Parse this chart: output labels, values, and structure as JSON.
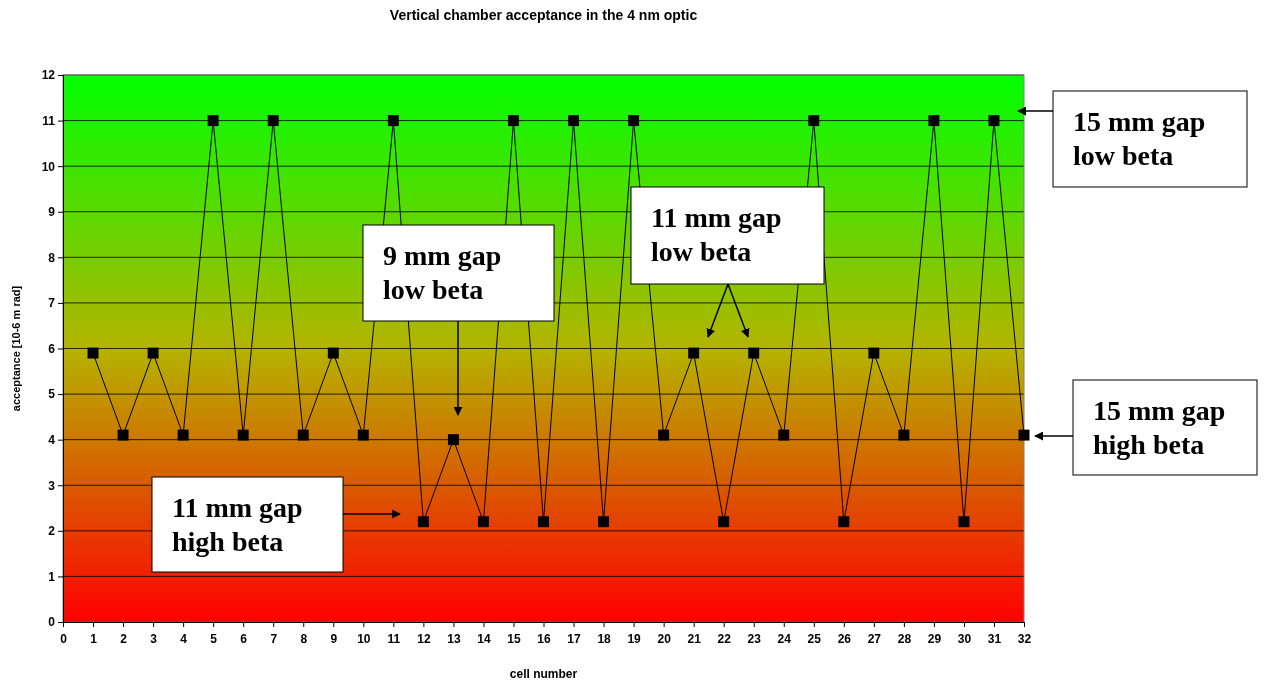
{
  "chart_data": {
    "type": "line",
    "title": "Vertical chamber acceptance in the 4 nm optic",
    "xlabel": "cell number",
    "ylabel": "acceptance [10-6 m rad]",
    "x": [
      1,
      2,
      3,
      4,
      5,
      6,
      7,
      8,
      9,
      10,
      11,
      12,
      13,
      14,
      15,
      16,
      17,
      18,
      19,
      20,
      21,
      22,
      23,
      24,
      25,
      26,
      27,
      28,
      29,
      30,
      31,
      32
    ],
    "series": [
      {
        "color": "#000000",
        "values": [
          5.9,
          4.1,
          5.9,
          4.1,
          11,
          4.1,
          11,
          4.1,
          5.9,
          4.1,
          11,
          2.2,
          4.0,
          2.2,
          11,
          2.2,
          11,
          2.2,
          11,
          4.1,
          5.9,
          2.2,
          5.9,
          4.1,
          11,
          2.2,
          5.9,
          4.1,
          11,
          2.2,
          11,
          4.1
        ]
      }
    ],
    "xlim": [
      0,
      32
    ],
    "xticks": [
      0,
      1,
      2,
      3,
      4,
      5,
      6,
      7,
      8,
      9,
      10,
      11,
      12,
      13,
      14,
      15,
      16,
      17,
      18,
      19,
      20,
      21,
      22,
      23,
      24,
      25,
      26,
      27,
      28,
      29,
      30,
      31,
      32
    ],
    "ylim": [
      0,
      12
    ],
    "yticks": [
      0,
      1,
      2,
      3,
      4,
      5,
      6,
      7,
      8,
      9,
      10,
      11,
      12
    ],
    "grid": "y",
    "marker": "square",
    "line_style": "solid",
    "annotations": [
      "15 mm gap low beta",
      "15 mm gap high beta",
      "11 mm gap low beta",
      "9 mm gap low beta",
      "11 mm gap high beta"
    ]
  }
}
